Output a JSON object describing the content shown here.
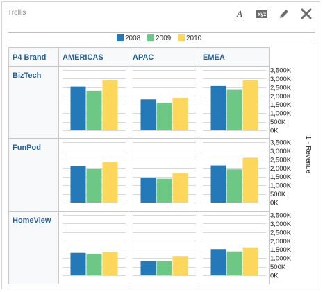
{
  "panel": {
    "title": "Trellis"
  },
  "toolbar": {
    "format_label": "A",
    "xyz_label": "xyz",
    "icons": [
      "text-format-icon",
      "xyz-labels-icon",
      "pencil-icon",
      "close-icon"
    ]
  },
  "colors": {
    "s2008": "#2479b8",
    "s2009": "#6dc885",
    "s2010": "#fdd65c",
    "header_text": "#1f5f99",
    "grid": "#d9d9d9",
    "border": "#c8c8c8"
  },
  "chart_data": {
    "type": "bar",
    "row_dimension": "P4 Brand",
    "columns": [
      "AMERICAS",
      "APAC",
      "EMEA"
    ],
    "rows": [
      "BizTech",
      "FunPod",
      "HomeView"
    ],
    "legend": [
      "2008",
      "2009",
      "2010"
    ],
    "legend_position": "top",
    "ylabel": "1 - Revenue",
    "y_ticks": [
      "3,500K",
      "3,000K",
      "2,500K",
      "2,000K",
      "1,500K",
      "1,000K",
      "500K",
      "0K"
    ],
    "ylim": [
      0,
      3500
    ],
    "units": "K",
    "grid": true,
    "cells": [
      {
        "row": "BizTech",
        "column": "AMERICAS",
        "values": [
          2550,
          2300,
          2900
        ]
      },
      {
        "row": "BizTech",
        "column": "APAC",
        "values": [
          1800,
          1600,
          1900
        ]
      },
      {
        "row": "BizTech",
        "column": "EMEA",
        "values": [
          2580,
          2350,
          2900
        ]
      },
      {
        "row": "FunPod",
        "column": "AMERICAS",
        "values": [
          2100,
          1950,
          2350
        ]
      },
      {
        "row": "FunPod",
        "column": "APAC",
        "values": [
          1450,
          1380,
          1700
        ]
      },
      {
        "row": "FunPod",
        "column": "EMEA",
        "values": [
          2150,
          1920,
          2600
        ]
      },
      {
        "row": "HomeView",
        "column": "AMERICAS",
        "values": [
          1300,
          1250,
          1350
        ]
      },
      {
        "row": "HomeView",
        "column": "APAC",
        "values": [
          820,
          820,
          1120
        ]
      },
      {
        "row": "HomeView",
        "column": "EMEA",
        "values": [
          1520,
          1380,
          1620
        ]
      }
    ]
  }
}
